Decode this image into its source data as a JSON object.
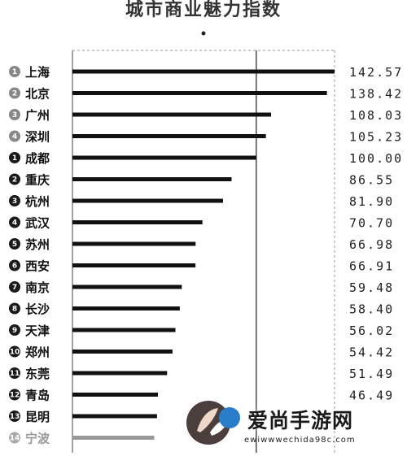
{
  "chart_data": {
    "type": "bar",
    "title": "城市商业魅力指数",
    "categories": [
      "上海",
      "北京",
      "广州",
      "深圳",
      "成都",
      "重庆",
      "杭州",
      "武汉",
      "苏州",
      "西安",
      "南京",
      "长沙",
      "天津",
      "郑州",
      "东莞",
      "青岛",
      "昆明",
      "宁波"
    ],
    "ranks": [
      "1",
      "2",
      "3",
      "4",
      "1",
      "2",
      "3",
      "4",
      "5",
      "6",
      "7",
      "8",
      "9",
      "10",
      "11",
      "12",
      "13",
      "14"
    ],
    "values": [
      142.57,
      138.42,
      108.03,
      105.23,
      100.0,
      86.55,
      81.9,
      70.7,
      66.98,
      66.91,
      59.48,
      58.4,
      56.02,
      54.42,
      51.49,
      46.49,
      null,
      null
    ],
    "value_labels": [
      "142.57",
      "138.42",
      "108.03",
      "105.23",
      "100.00",
      "86.55",
      "81.90",
      "70.70",
      "66.98",
      "66.91",
      "59.48",
      "58.40",
      "56.02",
      "54.42",
      "51.49",
      "46.49",
      "",
      ""
    ],
    "bar_values_no_label": [
      null,
      null,
      null,
      null,
      null,
      null,
      null,
      null,
      null,
      null,
      null,
      null,
      null,
      null,
      null,
      null,
      46.0,
      44.5
    ],
    "reference_line": 100,
    "xlim": [
      0,
      142.57
    ],
    "colors": {
      "bar": "#111111",
      "bar_last": "#999999",
      "badge_first_tier": "#888888",
      "badge_new_tier": "#1a1a1a",
      "badge_last": "#aaaaaa"
    }
  },
  "watermark": {
    "text": "爱尚手游网",
    "url": "ewiwwwechida98c.com"
  }
}
